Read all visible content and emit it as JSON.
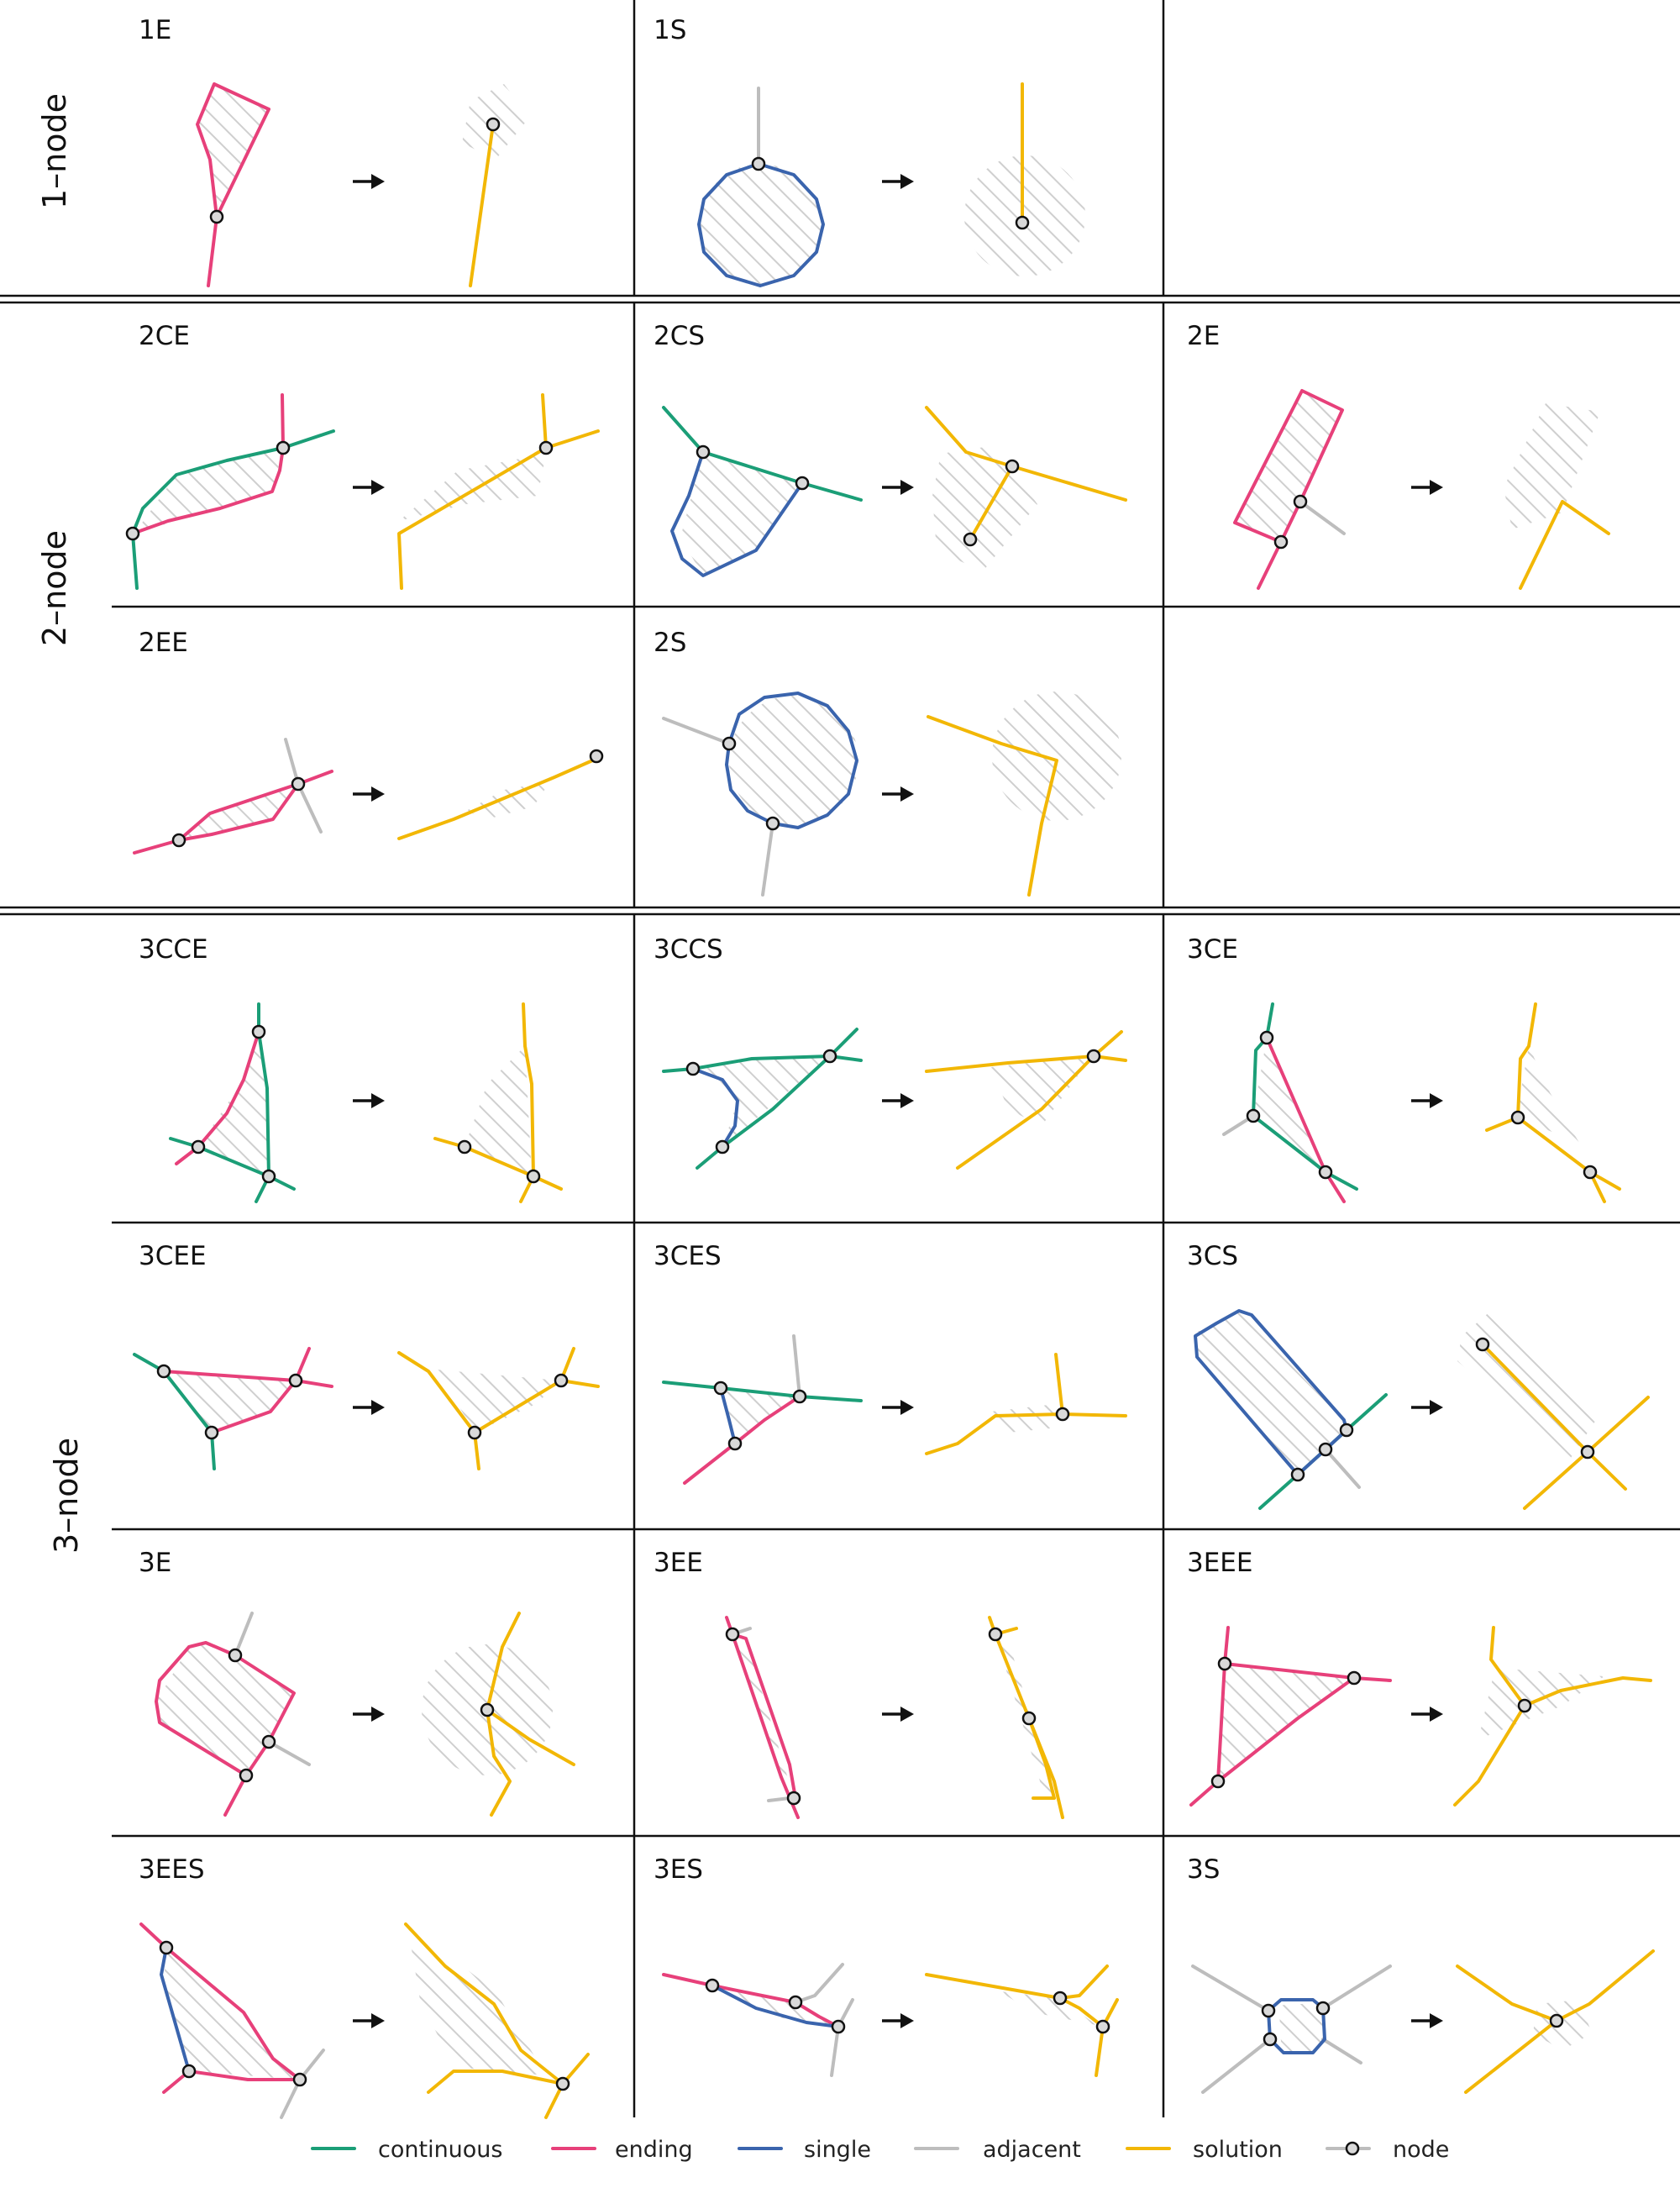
{
  "colors": {
    "continuous": "#1b9e77",
    "ending": "#e7407a",
    "single": "#3a64ad",
    "adjacent": "#bdbdbd",
    "solution": "#f2b705",
    "hatch": "#cfcfcf",
    "node_fill": "#d9d9d9",
    "node_stroke": "#111111"
  },
  "groups": [
    {
      "id": "g1",
      "label": "1–node"
    },
    {
      "id": "g2",
      "label": "2–node"
    },
    {
      "id": "g3",
      "label": "3–node"
    }
  ],
  "cells": [
    {
      "id": "1E",
      "label": "1E"
    },
    {
      "id": "1S",
      "label": "1S"
    },
    {
      "id": "2CE",
      "label": "2CE"
    },
    {
      "id": "2CS",
      "label": "2CS"
    },
    {
      "id": "2E",
      "label": "2E"
    },
    {
      "id": "2EE",
      "label": "2EE"
    },
    {
      "id": "2S",
      "label": "2S"
    },
    {
      "id": "3CCE",
      "label": "3CCE"
    },
    {
      "id": "3CCS",
      "label": "3CCS"
    },
    {
      "id": "3CE",
      "label": "3CE"
    },
    {
      "id": "3CEE",
      "label": "3CEE"
    },
    {
      "id": "3CES",
      "label": "3CES"
    },
    {
      "id": "3CS",
      "label": "3CS"
    },
    {
      "id": "3E",
      "label": "3E"
    },
    {
      "id": "3EE",
      "label": "3EE"
    },
    {
      "id": "3EEE",
      "label": "3EEE"
    },
    {
      "id": "3EES",
      "label": "3EES"
    },
    {
      "id": "3ES",
      "label": "3ES"
    },
    {
      "id": "3S",
      "label": "3S"
    }
  ],
  "legend": [
    {
      "key": "continuous",
      "label": "continuous",
      "icon": "line"
    },
    {
      "key": "ending",
      "label": "ending",
      "icon": "line"
    },
    {
      "key": "single",
      "label": "single",
      "icon": "line"
    },
    {
      "key": "adjacent",
      "label": "adjacent",
      "icon": "line"
    },
    {
      "key": "solution",
      "label": "solution",
      "icon": "line"
    },
    {
      "key": "node",
      "label": "node",
      "icon": "line-with-circle"
    }
  ]
}
